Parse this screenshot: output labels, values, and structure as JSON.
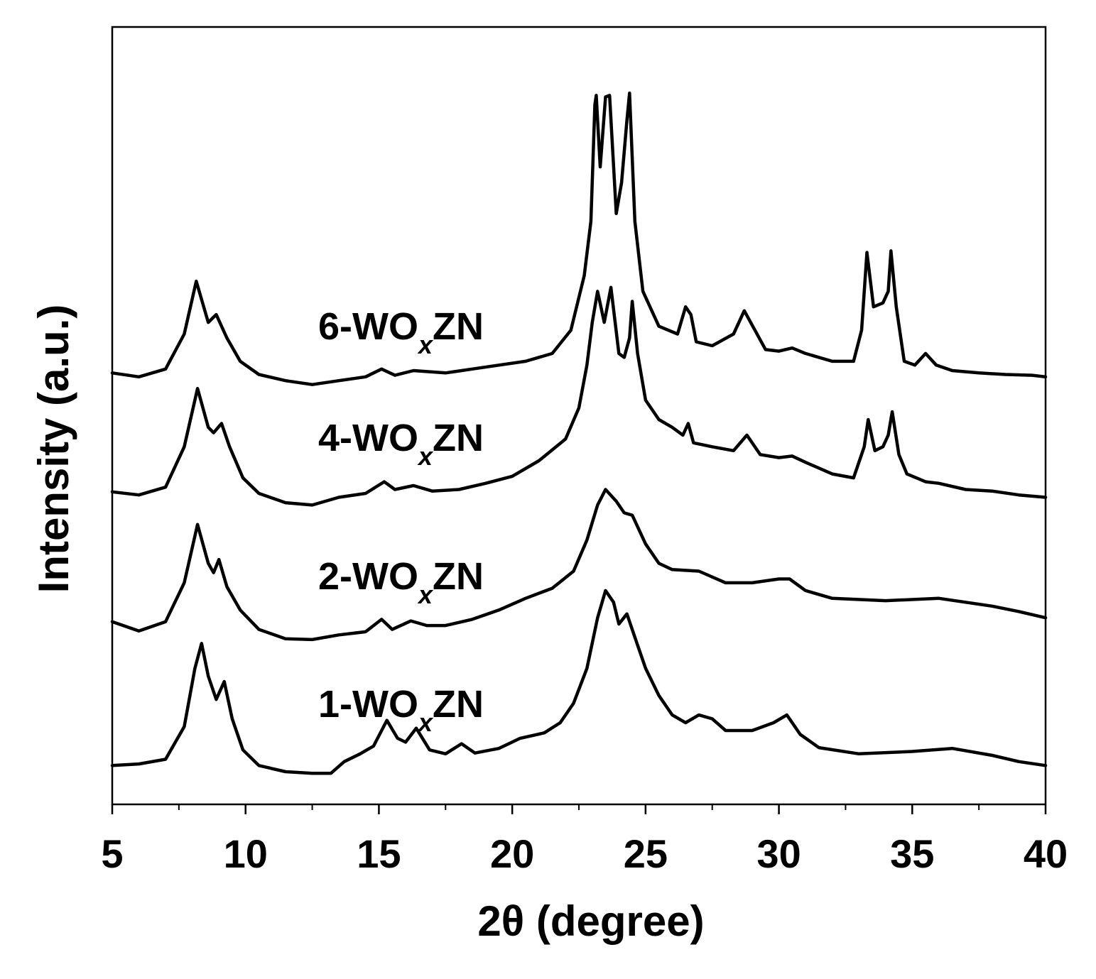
{
  "chart_data": {
    "type": "line",
    "title": "",
    "xlabel": "2θ (degree)",
    "ylabel": "Intensity (a.u.)",
    "xlim": [
      5,
      40
    ],
    "ylim": [
      0,
      100
    ],
    "x_ticks": [
      5,
      10,
      15,
      20,
      25,
      30,
      35,
      40
    ],
    "x_tick_labels": [
      "5",
      "10",
      "15",
      "20",
      "25",
      "30",
      "35",
      "40"
    ],
    "x_minor_step": 2.5,
    "y_ticks_shown": false,
    "grid": false,
    "legend": "none",
    "line_color": "#000000",
    "series": [
      {
        "name": "1-WOxZN",
        "label": {
          "prefix": "1-WO",
          "sub": "x",
          "suffix": "ZN"
        },
        "points": [
          [
            5,
            5
          ],
          [
            6,
            5.2
          ],
          [
            7,
            5.8
          ],
          [
            7.7,
            10
          ],
          [
            8.1,
            17.5
          ],
          [
            8.35,
            20.7
          ],
          [
            8.6,
            16.5
          ],
          [
            8.9,
            13.5
          ],
          [
            9.2,
            15.8
          ],
          [
            9.5,
            11
          ],
          [
            9.9,
            7
          ],
          [
            10.5,
            5
          ],
          [
            11.5,
            4.2
          ],
          [
            12.5,
            4
          ],
          [
            13.2,
            4
          ],
          [
            13.7,
            5.5
          ],
          [
            14.3,
            6.5
          ],
          [
            14.8,
            7.5
          ],
          [
            15.3,
            10.8
          ],
          [
            15.7,
            8.5
          ],
          [
            16,
            8
          ],
          [
            16.4,
            9.8
          ],
          [
            16.9,
            7
          ],
          [
            17.5,
            6.5
          ],
          [
            18.1,
            7.8
          ],
          [
            18.6,
            6.6
          ],
          [
            19.5,
            7.2
          ],
          [
            20.3,
            8.5
          ],
          [
            21.2,
            9.2
          ],
          [
            21.8,
            10.5
          ],
          [
            22.3,
            13
          ],
          [
            22.8,
            17.5
          ],
          [
            23.2,
            24
          ],
          [
            23.5,
            27.5
          ],
          [
            23.8,
            26
          ],
          [
            24,
            23.2
          ],
          [
            24.3,
            24.5
          ],
          [
            24.6,
            21.5
          ],
          [
            25,
            17.5
          ],
          [
            25.5,
            14
          ],
          [
            26,
            11.5
          ],
          [
            26.5,
            10.5
          ],
          [
            27,
            11.5
          ],
          [
            27.5,
            11
          ],
          [
            28,
            9.5
          ],
          [
            29,
            9.5
          ],
          [
            29.8,
            10.5
          ],
          [
            30.3,
            11.5
          ],
          [
            30.8,
            9
          ],
          [
            31.5,
            7.3
          ],
          [
            33,
            6.5
          ],
          [
            35,
            6.8
          ],
          [
            36.5,
            7.2
          ],
          [
            38,
            6.3
          ],
          [
            39,
            5.5
          ],
          [
            40,
            5
          ]
        ]
      },
      {
        "name": "2-WOxZN",
        "label": {
          "prefix": "2-WO",
          "sub": "x",
          "suffix": "ZN"
        },
        "points": [
          [
            5,
            23.5
          ],
          [
            6,
            22.3
          ],
          [
            7,
            23.5
          ],
          [
            7.7,
            28.5
          ],
          [
            8.2,
            36
          ],
          [
            8.6,
            31
          ],
          [
            8.8,
            29.8
          ],
          [
            9,
            31.5
          ],
          [
            9.3,
            28
          ],
          [
            9.8,
            25
          ],
          [
            10.5,
            22.5
          ],
          [
            11.5,
            21.3
          ],
          [
            12.5,
            21.2
          ],
          [
            13.5,
            21.8
          ],
          [
            14.5,
            22.2
          ],
          [
            15.1,
            23.8
          ],
          [
            15.5,
            22.5
          ],
          [
            16.2,
            23.6
          ],
          [
            16.8,
            23
          ],
          [
            17.5,
            23
          ],
          [
            18.5,
            23.8
          ],
          [
            19.5,
            25
          ],
          [
            20.5,
            26.5
          ],
          [
            21.5,
            27.8
          ],
          [
            22.3,
            30
          ],
          [
            22.8,
            34
          ],
          [
            23.2,
            38.5
          ],
          [
            23.5,
            40.5
          ],
          [
            23.9,
            39
          ],
          [
            24.2,
            37.5
          ],
          [
            24.5,
            37.2
          ],
          [
            25,
            33.5
          ],
          [
            25.5,
            31
          ],
          [
            26,
            30.2
          ],
          [
            27,
            30
          ],
          [
            28,
            28.5
          ],
          [
            29,
            28.5
          ],
          [
            30,
            29
          ],
          [
            30.4,
            29
          ],
          [
            31,
            27.5
          ],
          [
            32,
            26.5
          ],
          [
            34,
            26.2
          ],
          [
            36,
            26.5
          ],
          [
            38,
            25.5
          ],
          [
            39,
            24.8
          ],
          [
            40,
            24
          ]
        ]
      },
      {
        "name": "4-WOxZN",
        "label": {
          "prefix": "4-WO",
          "sub": "x",
          "suffix": "ZN"
        },
        "points": [
          [
            5,
            40.2
          ],
          [
            6,
            39.8
          ],
          [
            7,
            40.8
          ],
          [
            7.7,
            46
          ],
          [
            8.2,
            53.5
          ],
          [
            8.6,
            48.5
          ],
          [
            8.8,
            47.8
          ],
          [
            9.1,
            49
          ],
          [
            9.4,
            46
          ],
          [
            9.9,
            42
          ],
          [
            10.5,
            40
          ],
          [
            11.5,
            38.8
          ],
          [
            12.5,
            38.5
          ],
          [
            13.5,
            39.5
          ],
          [
            14.5,
            40
          ],
          [
            15.2,
            41.5
          ],
          [
            15.6,
            40.5
          ],
          [
            16.3,
            41
          ],
          [
            17,
            40.3
          ],
          [
            18,
            40.5
          ],
          [
            19,
            41.3
          ],
          [
            20,
            42.2
          ],
          [
            21,
            44.2
          ],
          [
            22,
            47
          ],
          [
            22.5,
            51
          ],
          [
            22.8,
            56.5
          ],
          [
            23,
            62
          ],
          [
            23.2,
            66
          ],
          [
            23.45,
            62
          ],
          [
            23.7,
            66.5
          ],
          [
            24,
            58
          ],
          [
            24.2,
            57.5
          ],
          [
            24.4,
            60
          ],
          [
            24.5,
            64.7
          ],
          [
            24.7,
            58
          ],
          [
            25,
            52
          ],
          [
            25.5,
            49.5
          ],
          [
            26,
            48.5
          ],
          [
            26.4,
            47.5
          ],
          [
            26.6,
            49
          ],
          [
            26.8,
            46.5
          ],
          [
            27.5,
            46
          ],
          [
            28.3,
            45.5
          ],
          [
            28.8,
            47.5
          ],
          [
            29.3,
            45
          ],
          [
            30,
            44.6
          ],
          [
            30.5,
            44.8
          ],
          [
            31,
            44
          ],
          [
            32,
            42.5
          ],
          [
            32.8,
            42
          ],
          [
            33.2,
            46
          ],
          [
            33.35,
            49.5
          ],
          [
            33.6,
            45.5
          ],
          [
            33.9,
            46
          ],
          [
            34.1,
            47.5
          ],
          [
            34.25,
            50.5
          ],
          [
            34.5,
            45
          ],
          [
            34.8,
            42.5
          ],
          [
            35.5,
            41.5
          ],
          [
            36,
            41.3
          ],
          [
            37,
            40.5
          ],
          [
            38,
            40.3
          ],
          [
            39,
            39.8
          ],
          [
            40,
            39.5
          ]
        ]
      },
      {
        "name": "6-WOxZN",
        "label": {
          "prefix": "6-WO",
          "sub": "x",
          "suffix": "ZN"
        },
        "points": [
          [
            5,
            55.5
          ],
          [
            6,
            55
          ],
          [
            7,
            56
          ],
          [
            7.7,
            60.5
          ],
          [
            8.15,
            67.3
          ],
          [
            8.6,
            62
          ],
          [
            8.9,
            63
          ],
          [
            9.3,
            60
          ],
          [
            9.8,
            57
          ],
          [
            10.5,
            55.3
          ],
          [
            11.5,
            54.5
          ],
          [
            12.5,
            54
          ],
          [
            13.5,
            54.5
          ],
          [
            14.5,
            55
          ],
          [
            15.1,
            56
          ],
          [
            15.6,
            55.2
          ],
          [
            16.3,
            55.8
          ],
          [
            17.5,
            55.5
          ],
          [
            18.5,
            56
          ],
          [
            19.5,
            56.5
          ],
          [
            20.5,
            57
          ],
          [
            21.5,
            58
          ],
          [
            22.2,
            61
          ],
          [
            22.7,
            68
          ],
          [
            22.95,
            75
          ],
          [
            23.1,
            90
          ],
          [
            23.15,
            91.2
          ],
          [
            23.3,
            82
          ],
          [
            23.5,
            91
          ],
          [
            23.65,
            91.2
          ],
          [
            23.9,
            76
          ],
          [
            24.1,
            80
          ],
          [
            24.3,
            88
          ],
          [
            24.4,
            91.5
          ],
          [
            24.6,
            75
          ],
          [
            24.9,
            66
          ],
          [
            25.5,
            61.5
          ],
          [
            26.2,
            60.5
          ],
          [
            26.5,
            64
          ],
          [
            26.7,
            63
          ],
          [
            26.9,
            59.5
          ],
          [
            27.5,
            59
          ],
          [
            28.3,
            60.5
          ],
          [
            28.7,
            63.5
          ],
          [
            29.1,
            61
          ],
          [
            29.5,
            58.5
          ],
          [
            30,
            58.3
          ],
          [
            30.5,
            58.7
          ],
          [
            31,
            58
          ],
          [
            32,
            57
          ],
          [
            32.8,
            57
          ],
          [
            33.1,
            61
          ],
          [
            33.3,
            71
          ],
          [
            33.55,
            64
          ],
          [
            33.9,
            64.5
          ],
          [
            34.1,
            66
          ],
          [
            34.2,
            71.2
          ],
          [
            34.4,
            64
          ],
          [
            34.7,
            57
          ],
          [
            35.1,
            56.5
          ],
          [
            35.5,
            58
          ],
          [
            35.9,
            56.5
          ],
          [
            36.5,
            55.8
          ],
          [
            37.5,
            55.5
          ],
          [
            38.5,
            55.3
          ],
          [
            39.5,
            55.2
          ],
          [
            40,
            55
          ]
        ]
      }
    ]
  }
}
